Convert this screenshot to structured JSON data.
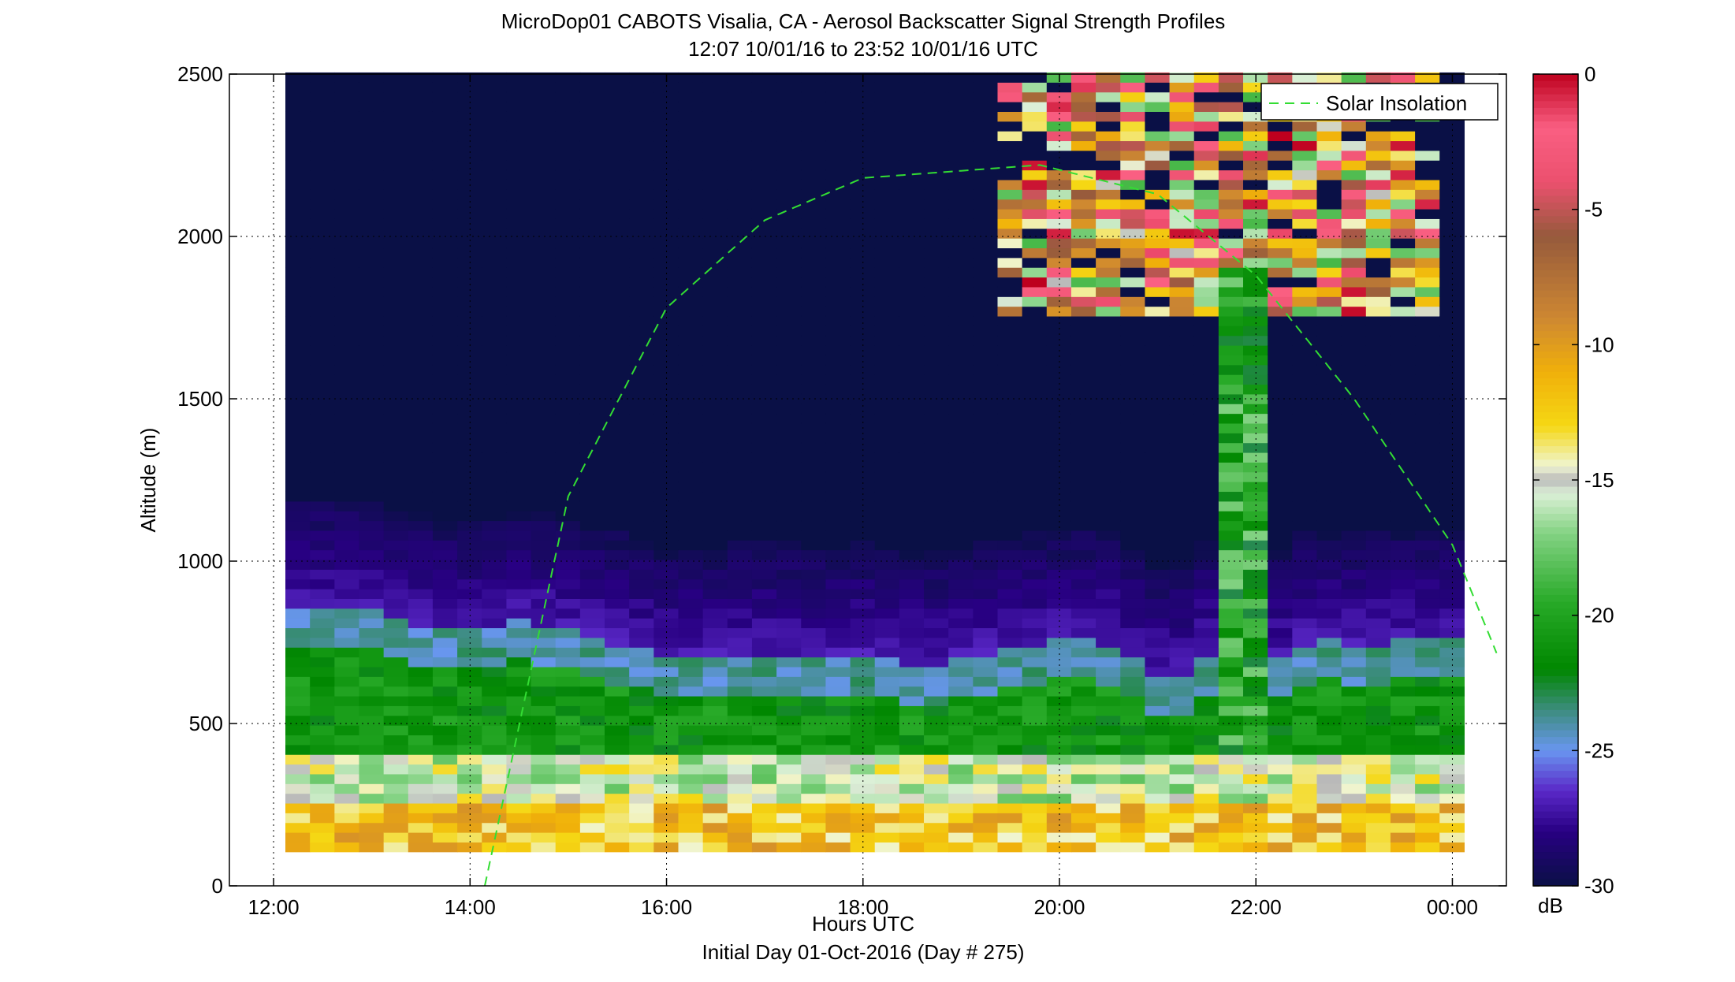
{
  "chart_data": {
    "type": "heatmap",
    "title": "MicroDop01 CABOTS Visalia, CA - Aerosol Backscatter Signal Strength Profiles",
    "subtitle": "12:07 10/01/16 to 23:52 10/01/16  UTC",
    "xlabel": "Hours UTC",
    "xlabel2": "Initial Day 01-Oct-2016 (Day # 275)",
    "ylabel": "Altitude (m)",
    "xlim": [
      11.55,
      24.55
    ],
    "ylim": [
      0,
      2500
    ],
    "x_ticks": [
      12,
      14,
      16,
      18,
      20,
      22,
      24
    ],
    "x_tick_labels": [
      "12:00",
      "14:00",
      "16:00",
      "18:00",
      "20:00",
      "22:00",
      "00:00"
    ],
    "y_ticks": [
      0,
      500,
      1000,
      1500,
      2000,
      2500
    ],
    "y_tick_labels": [
      "0",
      "500",
      "1000",
      "1500",
      "2000",
      "2500"
    ],
    "grid": "dotted",
    "colorbar": {
      "label": "dB",
      "range": [
        -30,
        0
      ],
      "ticks": [
        0,
        -5,
        -10,
        -15,
        -20,
        -25,
        -30
      ],
      "tick_labels": [
        "0",
        "-5",
        "-10",
        "-15",
        "-20",
        "-25",
        "-30"
      ]
    },
    "legend": {
      "placement": "top-right",
      "entries": [
        {
          "name": "Solar Insolation",
          "color": "#33dd33",
          "style": "dashed"
        }
      ]
    },
    "data_time_range": [
      12.12,
      24.0
    ],
    "time_step_hours": 0.25,
    "range_gate_m": 30,
    "lowest_gate_m": 105,
    "mixed_layer_top_m": [
      [
        12.1,
        780
      ],
      [
        12.6,
        800
      ],
      [
        13.1,
        780
      ],
      [
        13.6,
        740
      ],
      [
        14.1,
        720
      ],
      [
        14.6,
        760
      ],
      [
        15.1,
        720
      ],
      [
        15.6,
        680
      ],
      [
        16.1,
        640
      ],
      [
        16.6,
        650
      ],
      [
        17.1,
        660
      ],
      [
        17.6,
        640
      ],
      [
        18.1,
        660
      ],
      [
        18.6,
        620
      ],
      [
        19.1,
        650
      ],
      [
        19.6,
        680
      ],
      [
        20.1,
        700
      ],
      [
        20.6,
        680
      ],
      [
        21.1,
        560
      ],
      [
        21.6,
        680
      ],
      [
        22.1,
        620
      ],
      [
        22.6,
        700
      ],
      [
        23.1,
        680
      ],
      [
        23.6,
        700
      ],
      [
        24.0,
        700
      ]
    ],
    "upper_aerosol_layer": {
      "start": 19.4,
      "end": 23.8,
      "bottom_m": 1750,
      "top_m": 2500
    },
    "solar_insolation_curve": [
      [
        14.15,
        0
      ],
      [
        15,
        1200
      ],
      [
        16,
        1780
      ],
      [
        17,
        2050
      ],
      [
        18,
        2180
      ],
      [
        19.8,
        2220
      ],
      [
        21,
        2130
      ],
      [
        22,
        1880
      ],
      [
        23,
        1500
      ],
      [
        24,
        1050
      ],
      [
        24.5,
        680
      ]
    ]
  }
}
